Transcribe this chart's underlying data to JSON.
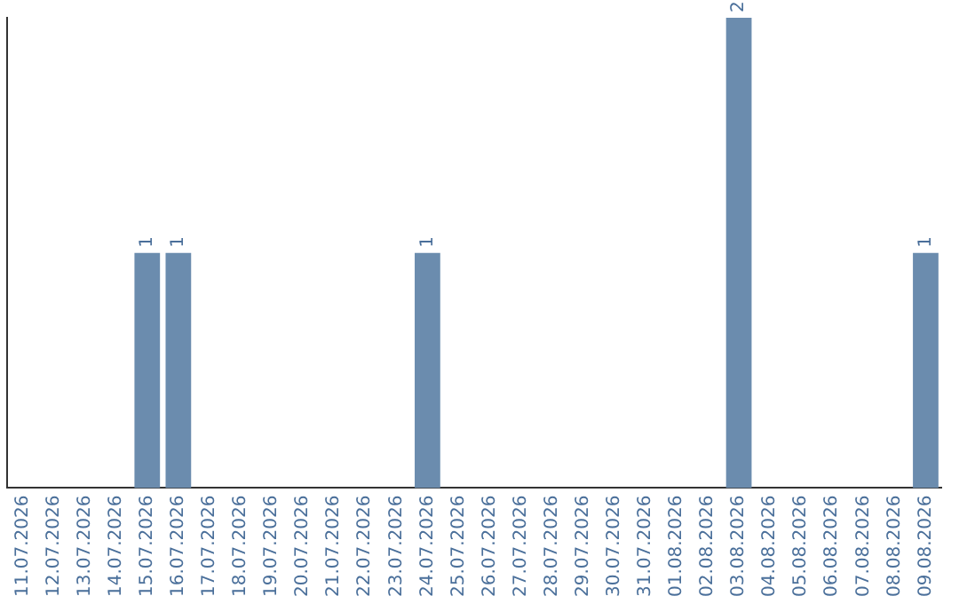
{
  "chart_data": {
    "type": "bar",
    "categories": [
      "11.07.2026",
      "12.07.2026",
      "13.07.2026",
      "14.07.2026",
      "15.07.2026",
      "16.07.2026",
      "17.07.2026",
      "18.07.2026",
      "19.07.2026",
      "20.07.2026",
      "21.07.2026",
      "22.07.2026",
      "23.07.2026",
      "24.07.2026",
      "25.07.2026",
      "26.07.2026",
      "27.07.2026",
      "28.07.2026",
      "29.07.2026",
      "30.07.2026",
      "31.07.2026",
      "01.08.2026",
      "02.08.2026",
      "03.08.2026",
      "04.08.2026",
      "05.08.2026",
      "06.08.2026",
      "07.08.2026",
      "08.08.2026",
      "09.08.2026"
    ],
    "values": [
      0,
      0,
      0,
      0,
      1,
      1,
      0,
      0,
      0,
      0,
      0,
      0,
      0,
      1,
      0,
      0,
      0,
      0,
      0,
      0,
      0,
      0,
      0,
      2,
      0,
      0,
      0,
      0,
      0,
      1
    ],
    "value_labels": [
      null,
      null,
      null,
      null,
      "1",
      "1",
      null,
      null,
      null,
      null,
      null,
      null,
      null,
      "1",
      null,
      null,
      null,
      null,
      null,
      null,
      null,
      null,
      null,
      "2",
      null,
      null,
      null,
      null,
      null,
      "1"
    ],
    "color": "#6b8cae",
    "ylim": [
      0,
      2
    ],
    "tick_labels": "x",
    "grid": false,
    "legend": false
  }
}
